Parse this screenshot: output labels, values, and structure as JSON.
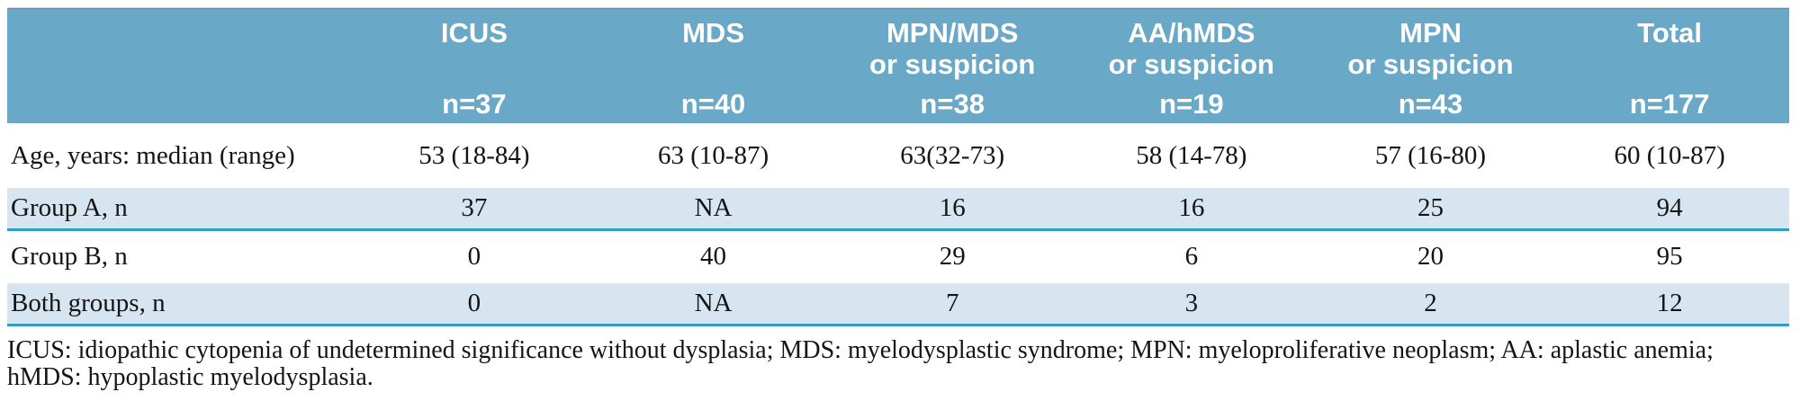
{
  "table": {
    "columns": [
      {
        "title": "",
        "subtitle": "",
        "n": ""
      },
      {
        "title": "ICUS",
        "subtitle": "",
        "n": "n=37"
      },
      {
        "title": "MDS",
        "subtitle": "",
        "n": "n=40"
      },
      {
        "title": "MPN/MDS",
        "subtitle": "or suspicion",
        "n": "n=38"
      },
      {
        "title": "AA/hMDS",
        "subtitle": "or suspicion",
        "n": "n=19"
      },
      {
        "title": "MPN",
        "subtitle": "or suspicion",
        "n": "n=43"
      },
      {
        "title": "Total",
        "subtitle": "",
        "n": "n=177"
      }
    ],
    "rows": [
      {
        "label": "Age, years: median (range)",
        "shaded": false,
        "values": [
          "53 (18-84)",
          "63 (10-87)",
          "63(32-73)",
          "58 (14-78)",
          "57 (16-80)",
          "60 (10-87)"
        ]
      },
      {
        "label": "Group A, n",
        "shaded": true,
        "values": [
          "37",
          "NA",
          "16",
          "16",
          "25",
          "94"
        ]
      },
      {
        "label": "Group B, n",
        "shaded": false,
        "values": [
          "0",
          "40",
          "29",
          "6",
          "20",
          "95"
        ]
      },
      {
        "label": "Both groups, n",
        "shaded": true,
        "values": [
          "0",
          "NA",
          "7",
          "3",
          "2",
          "12"
        ]
      }
    ]
  },
  "footnote": "ICUS: idiopathic cytopenia of undetermined significance without dysplasia; MDS: myelodysplastic syndrome; MPN: myeloproliferative neoplasm; AA: aplastic anemia; hMDS: hypoplastic myelodysplasia.",
  "colors": {
    "header_bg": "#69a8c6",
    "header_text": "#ffffff",
    "shaded_row_bg": "#d6e5ef",
    "row_underline": "#2f9fc1",
    "body_text": "#141414"
  }
}
